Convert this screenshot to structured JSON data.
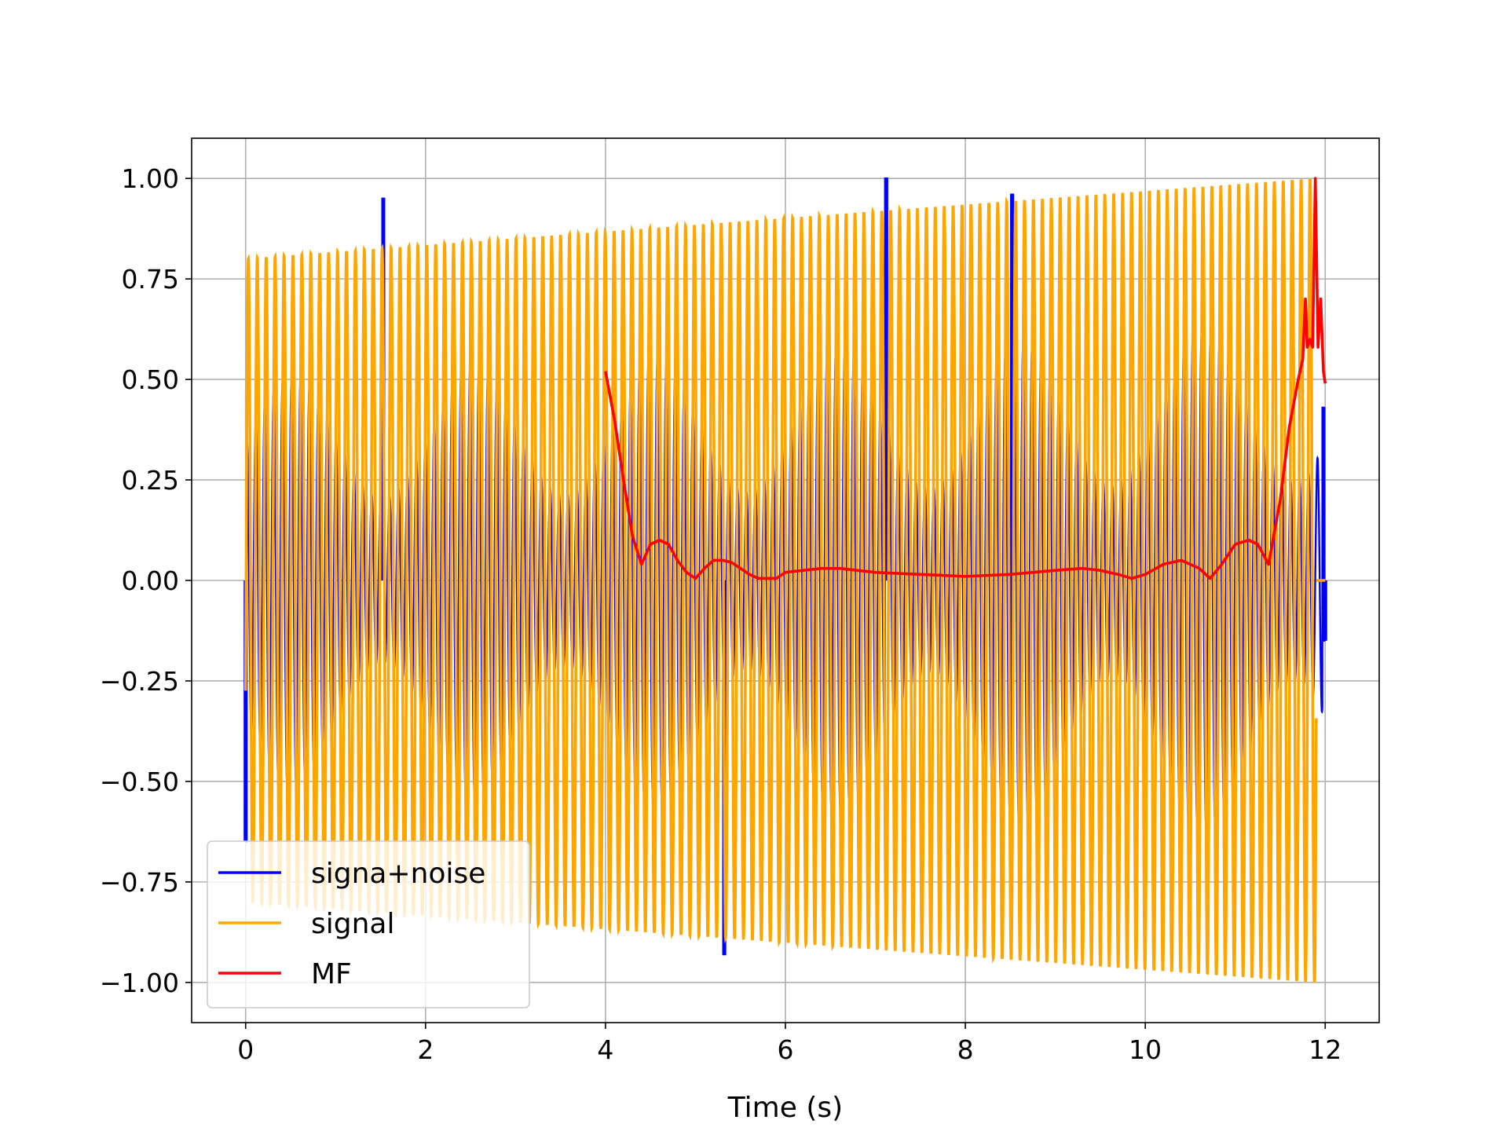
{
  "chart_data": {
    "type": "line",
    "title": "",
    "xlabel": "Time (s)",
    "ylabel": "",
    "xlim": [
      -0.6,
      12.6
    ],
    "ylim": [
      -1.1,
      1.1
    ],
    "x_ticks": [
      0,
      2,
      4,
      6,
      8,
      10,
      12
    ],
    "x_tick_labels": [
      "0",
      "2",
      "4",
      "6",
      "8",
      "10",
      "12"
    ],
    "y_ticks": [
      1.0,
      0.75,
      0.5,
      0.25,
      0.0,
      -0.25,
      -0.5,
      -0.75,
      -1.0
    ],
    "y_tick_labels": [
      "1.00",
      "0.75",
      "0.50",
      "0.25",
      "0.00",
      "−0.25",
      "−0.50",
      "−0.75",
      "−1.00"
    ],
    "grid": true,
    "legend_position": "lower-left",
    "series": [
      {
        "name": "signa+noise",
        "color": "#0000ff",
        "description_points": {
          "x": [
            0,
            1.53,
            5.32,
            7.12,
            8.52,
            11.98,
            12.0
          ],
          "y": [
            -0.65,
            0.95,
            -0.93,
            1.0,
            0.96,
            0.43,
            -0.15
          ]
        }
      },
      {
        "name": "signal",
        "color": "#ffa500",
        "amplitude_start": 0.8,
        "amplitude_end": 1.0,
        "x_start": 0.0,
        "x_end": 11.9,
        "cycles": 120,
        "x_tail": [
          11.9,
          12.0
        ],
        "y_tail": [
          0.0,
          0.0
        ]
      },
      {
        "name": "MF",
        "color": "#ff0000",
        "x": [
          4.0,
          4.1,
          4.2,
          4.3,
          4.4,
          4.5,
          4.6,
          4.7,
          4.8,
          4.9,
          5.0,
          5.1,
          5.2,
          5.3,
          5.4,
          5.5,
          5.6,
          5.7,
          5.8,
          5.9,
          6.0,
          6.2,
          6.4,
          6.6,
          6.8,
          7.0,
          7.5,
          8.0,
          8.5,
          9.0,
          9.3,
          9.5,
          9.7,
          9.85,
          10.0,
          10.2,
          10.4,
          10.6,
          10.72,
          10.85,
          11.0,
          11.15,
          11.25,
          11.37,
          11.5,
          11.6,
          11.7,
          11.75,
          11.78,
          11.8,
          11.83,
          11.86,
          11.89,
          11.92,
          11.95,
          11.98,
          12.0
        ],
        "y": [
          0.52,
          0.4,
          0.25,
          0.11,
          0.04,
          0.09,
          0.1,
          0.09,
          0.05,
          0.02,
          0.005,
          0.03,
          0.05,
          0.05,
          0.045,
          0.03,
          0.015,
          0.005,
          0.005,
          0.005,
          0.02,
          0.025,
          0.03,
          0.03,
          0.025,
          0.02,
          0.015,
          0.01,
          0.015,
          0.025,
          0.03,
          0.025,
          0.015,
          0.005,
          0.015,
          0.04,
          0.05,
          0.03,
          0.005,
          0.04,
          0.09,
          0.1,
          0.09,
          0.04,
          0.2,
          0.38,
          0.5,
          0.55,
          0.7,
          0.58,
          0.6,
          0.58,
          1.0,
          0.58,
          0.7,
          0.52,
          0.49
        ]
      }
    ]
  }
}
